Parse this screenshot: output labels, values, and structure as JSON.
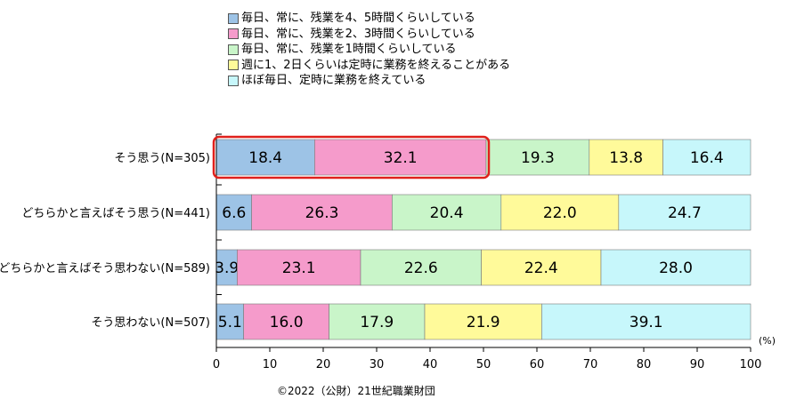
{
  "colors": {
    "series": [
      "#9DC3E6",
      "#F59BCB",
      "#C9F5C9",
      "#FFFA9A",
      "#C7F7FB"
    ],
    "highlight": "#E0201B",
    "axis": "#000000"
  },
  "chart_data": {
    "type": "bar",
    "orientation": "horizontal",
    "stacked": true,
    "categories": [
      "そう思う(N=305)",
      "どちらかと言えばそう思う(N=441)",
      "どちらかと言えばそう思わない(N=589)",
      "そう思わない(N=507)"
    ],
    "series": [
      {
        "name": "毎日、常に、残業を4、5時間くらいしている",
        "values": [
          18.4,
          6.6,
          3.9,
          5.1
        ]
      },
      {
        "name": "毎日、常に、残業を2、3時間くらいしている",
        "values": [
          32.1,
          26.3,
          23.1,
          16.0
        ]
      },
      {
        "name": "毎日、常に、残業を1時間くらいしている",
        "values": [
          19.3,
          20.4,
          22.6,
          17.9
        ]
      },
      {
        "name": "週に1、2日くらいは定時に業務を終えることがある",
        "values": [
          13.8,
          22.0,
          22.4,
          21.9
        ]
      },
      {
        "name": "ほぼ毎日、定時に業務を終えている",
        "values": [
          16.4,
          24.7,
          28.0,
          39.1
        ]
      }
    ],
    "xlim": [
      0,
      100
    ],
    "xticks": [
      0,
      10,
      20,
      30,
      40,
      50,
      60,
      70,
      80,
      90,
      100
    ],
    "unit_label": "(%)",
    "legend_position": "top",
    "grid": false,
    "highlight": {
      "category_index": 0,
      "series_indices": [
        0,
        1
      ]
    }
  },
  "footer": {
    "copyright": "©2022（公財）21世紀職業財団"
  }
}
